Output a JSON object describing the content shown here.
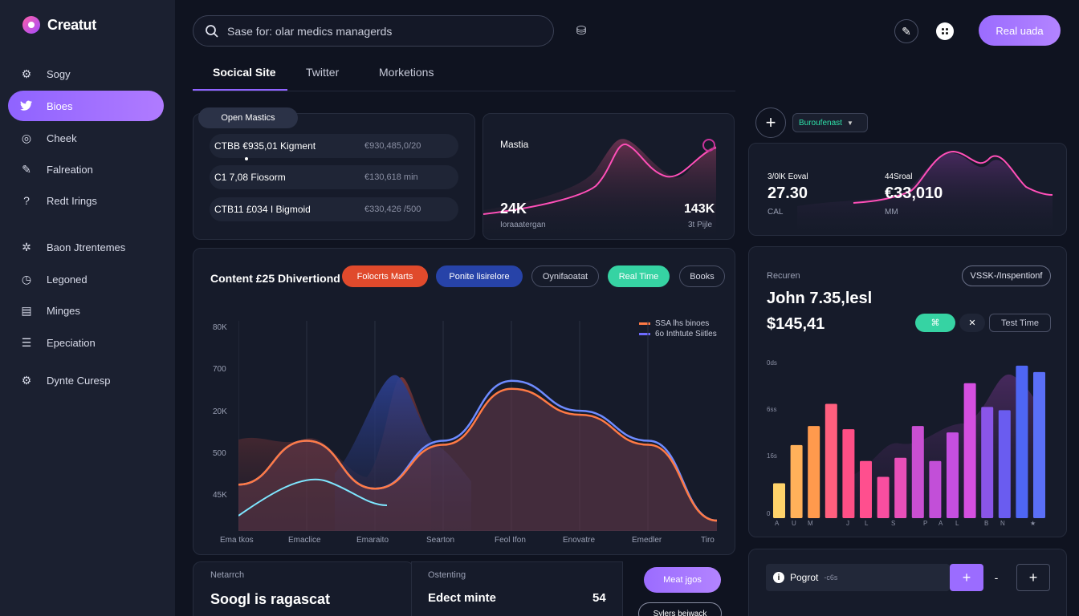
{
  "app": {
    "name": "Creatut"
  },
  "sidebar": {
    "items": [
      {
        "label": "Sogy",
        "icon": "gear-icon",
        "active": false
      },
      {
        "label": "Bioes",
        "icon": "twitter-icon",
        "active": true
      },
      {
        "label": "Cheek",
        "icon": "target-icon",
        "active": false
      },
      {
        "label": "Falreation",
        "icon": "tag-icon",
        "active": false
      },
      {
        "label": "Redt Irings",
        "icon": "help-icon",
        "active": false
      },
      {
        "label": "Baon Jtrentemes",
        "icon": "settings-icon",
        "active": false
      },
      {
        "label": "Legoned",
        "icon": "clock-icon",
        "active": false
      },
      {
        "label": "Minges",
        "icon": "chart-icon",
        "active": false
      },
      {
        "label": "Epeciation",
        "icon": "list-icon",
        "active": false
      },
      {
        "label": "Dynte Curesp",
        "icon": "gear-outline-icon",
        "active": false
      }
    ]
  },
  "header": {
    "search_placeholder": "Sase for: olar medics managerds",
    "primary_button": "Real uada"
  },
  "tabs": [
    {
      "label": "Socical Site",
      "active": true
    },
    {
      "label": "Twitter",
      "active": false
    },
    {
      "label": "Morketions",
      "active": false
    }
  ],
  "overview_card": {
    "pill": "Open Mastics",
    "rows": [
      {
        "label": "CTBB €935,01 Kigment",
        "value": "€930,485,0/20"
      },
      {
        "label": "C1 7,08 Fiosorm",
        "value": "€130,618 min"
      },
      {
        "label": "CTB11 £034 I Bigmoid",
        "value": "€330,426 /500"
      }
    ]
  },
  "metric_card": {
    "title": "Mastia",
    "left_value": "24K",
    "left_caption": "Ioraaatergan",
    "right_value": "143K",
    "right_caption": "3t Pijle"
  },
  "top_right": {
    "dropdown": "Buroufenast",
    "stat1": {
      "label": "3/0lK Eoval",
      "value": "27.30",
      "caption": "CAL"
    },
    "stat2": {
      "label": "44Sroal",
      "value": "€33,010",
      "caption": "MM"
    }
  },
  "main_chart": {
    "title": "Content £25 Dhivertiond",
    "chips": [
      {
        "label": "Folocrts Marts",
        "color": "#e04a2c"
      },
      {
        "label": "Ponite lisirelore",
        "color": "#2743a8"
      },
      {
        "label": "Oynifaoatat",
        "color": ""
      },
      {
        "label": "Real Time",
        "color": "#36d3a3"
      },
      {
        "label": "Books",
        "color": ""
      }
    ],
    "legend": [
      {
        "label": "SSA lhs binoes",
        "color": "#ff7a45"
      },
      {
        "label": "6o Inthtute Siitles",
        "color": "#6e6bff"
      }
    ]
  },
  "chart_data": {
    "type": "area",
    "categories": [
      "Ema tkos",
      "Emaclice",
      "Emaraito",
      "Searton",
      "Feol Ifon",
      "Enovatre",
      "Emedler",
      "Tiro"
    ],
    "y_tick_labels": [
      "80K",
      "700",
      "20K",
      "500",
      "45K"
    ],
    "legend_placement": "top-right",
    "grid": true,
    "series": [
      {
        "name": "SSA lhs binoes",
        "color": "#ff7a45",
        "values": [
          0.2,
          0.42,
          0.18,
          0.4,
          0.68,
          0.55,
          0.4,
          0.02
        ]
      },
      {
        "name": "6o Inthtute Siitles",
        "color": "#6e6bff",
        "values": [
          0.2,
          0.42,
          0.18,
          0.42,
          0.72,
          0.57,
          0.42,
          0.02
        ]
      }
    ]
  },
  "right_panel": {
    "caption": "Recuren",
    "button": "VSSK-/Inspentionf",
    "name": "John 7.35,lesl",
    "amount": "$145,41",
    "test_button": "Test Time",
    "y_tick_labels": [
      "0ds",
      "6ss",
      "16s",
      "0"
    ],
    "x_tick_labels": [
      "A",
      "U",
      "M",
      "J",
      "L",
      "S",
      "P",
      "A",
      "L",
      "B",
      "N",
      "★"
    ],
    "bars": [
      0.22,
      0.46,
      0.58,
      0.72,
      0.56,
      0.36,
      0.26,
      0.38,
      0.58,
      0.36,
      0.54,
      0.85,
      0.7,
      0.68,
      0.96,
      0.92
    ]
  },
  "bottom": {
    "card1": {
      "caption": "Netarrch",
      "title": "Soogl is ragascat"
    },
    "card2": {
      "caption": "Ostenting",
      "title": "Edect minte",
      "value": "54"
    },
    "button": "Meat jgos",
    "outline_button": "Sylers beiwack",
    "progress_label": "Pogrot",
    "progress_small": "-c6s"
  }
}
